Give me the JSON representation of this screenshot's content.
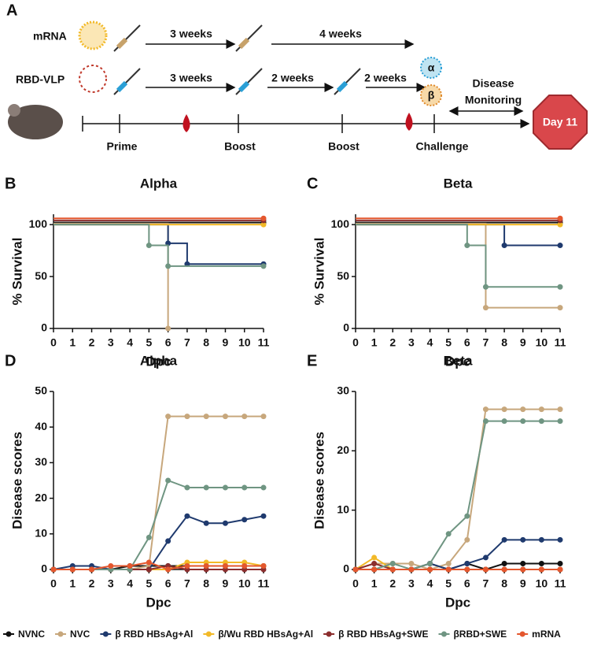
{
  "schematic": {
    "panel": "A",
    "rows": [
      "mRNA",
      "RBD-VLP"
    ],
    "intervals": [
      "3 weeks",
      "4 weeks",
      "3 weeks",
      "2 weeks",
      "2 weeks"
    ],
    "timeline": [
      "Prime",
      "Boost",
      "Boost",
      "Challenge"
    ],
    "variants": [
      "α",
      "β"
    ],
    "monitoring": [
      "Disease",
      "Monitoring"
    ],
    "endpoint": "Day 11"
  },
  "legend": [
    {
      "name": "NVNC",
      "color": "#111111"
    },
    {
      "name": "NVC",
      "color": "#c7a77c"
    },
    {
      "name": "β RBD HBsAg+Al",
      "color": "#1f3a6e"
    },
    {
      "name": "β/Wu RBD HBsAg+Al",
      "color": "#f2b928"
    },
    {
      "name": "β RBD HBsAg+SWE",
      "color": "#8b2e2e"
    },
    {
      "name": "βRBD+SWE",
      "color": "#6f9582"
    },
    {
      "name": "mRNA",
      "color": "#e4572e"
    }
  ],
  "chart_data": [
    {
      "type": "step",
      "panel": "B",
      "title": "Alpha",
      "xlabel": "Dpc",
      "ylabel": "% Survival",
      "xlim": [
        0,
        11
      ],
      "xticks": [
        0,
        1,
        2,
        3,
        4,
        5,
        6,
        7,
        8,
        9,
        10,
        11
      ],
      "ylim": [
        0,
        110
      ],
      "yticks": [
        0,
        50,
        100
      ],
      "series": [
        {
          "x": [
            0,
            11
          ],
          "values": [
            102,
            102
          ]
        },
        {
          "x": [
            0,
            6
          ],
          "values": [
            101,
            0
          ]
        },
        {
          "x": [
            0,
            6,
            7,
            11
          ],
          "values": [
            100,
            82,
            62,
            62
          ]
        },
        {
          "x": [
            0,
            11
          ],
          "values": [
            100,
            100
          ]
        },
        {
          "x": [
            0,
            11
          ],
          "values": [
            104,
            104
          ]
        },
        {
          "x": [
            0,
            5,
            6,
            11
          ],
          "values": [
            100,
            80,
            60,
            60
          ]
        },
        {
          "x": [
            0,
            11
          ],
          "values": [
            106,
            106
          ]
        }
      ]
    },
    {
      "type": "step",
      "panel": "C",
      "title": "Beta",
      "xlabel": "Dpc",
      "ylabel": "% Survival",
      "xlim": [
        0,
        11
      ],
      "xticks": [
        0,
        1,
        2,
        3,
        4,
        5,
        6,
        7,
        8,
        9,
        10,
        11
      ],
      "ylim": [
        0,
        110
      ],
      "yticks": [
        0,
        50,
        100
      ],
      "series": [
        {
          "x": [
            0,
            11
          ],
          "values": [
            102,
            102
          ]
        },
        {
          "x": [
            0,
            7,
            11
          ],
          "values": [
            101,
            20,
            20
          ]
        },
        {
          "x": [
            0,
            8,
            11
          ],
          "values": [
            100,
            80,
            80
          ]
        },
        {
          "x": [
            0,
            11
          ],
          "values": [
            100,
            100
          ]
        },
        {
          "x": [
            0,
            11
          ],
          "values": [
            104,
            104
          ]
        },
        {
          "x": [
            0,
            6,
            7,
            11
          ],
          "values": [
            100,
            80,
            40,
            40
          ]
        },
        {
          "x": [
            0,
            11
          ],
          "values": [
            106,
            106
          ]
        }
      ]
    },
    {
      "type": "line",
      "panel": "D",
      "title": "Alpha",
      "xlabel": "Dpc",
      "ylabel": "Disease scores",
      "xlim": [
        0,
        11
      ],
      "xticks": [
        0,
        1,
        2,
        3,
        4,
        5,
        6,
        7,
        8,
        9,
        10,
        11
      ],
      "ylim": [
        0,
        50
      ],
      "yticks": [
        0,
        10,
        20,
        30,
        40,
        50
      ],
      "x": [
        0,
        1,
        2,
        3,
        4,
        5,
        6,
        7,
        8,
        9,
        10,
        11
      ],
      "series": [
        {
          "values": [
            0,
            0,
            0,
            0,
            1,
            1,
            1,
            1,
            1,
            1,
            1,
            1
          ]
        },
        {
          "values": [
            0,
            0,
            0,
            0,
            0,
            1,
            43,
            43,
            43,
            43,
            43,
            43
          ]
        },
        {
          "values": [
            0,
            1,
            1,
            0,
            0,
            0,
            8,
            15,
            13,
            13,
            14,
            15
          ]
        },
        {
          "values": [
            0,
            0,
            0,
            0,
            0,
            0,
            0,
            2,
            2,
            2,
            2,
            1
          ]
        },
        {
          "values": [
            0,
            0,
            0,
            0,
            0,
            0,
            1,
            0,
            0,
            0,
            0,
            0
          ]
        },
        {
          "values": [
            0,
            0,
            0,
            0,
            0,
            9,
            25,
            23,
            23,
            23,
            23,
            23
          ]
        },
        {
          "values": [
            0,
            0,
            0,
            1,
            1,
            2,
            0,
            1,
            1,
            1,
            1,
            1
          ]
        }
      ]
    },
    {
      "type": "line",
      "panel": "E",
      "title": "Beta",
      "xlabel": "Dpc",
      "ylabel": "Disease scores",
      "xlim": [
        0,
        11
      ],
      "xticks": [
        0,
        1,
        2,
        3,
        4,
        5,
        6,
        7,
        8,
        9,
        10,
        11
      ],
      "ylim": [
        0,
        30
      ],
      "yticks": [
        0,
        10,
        20,
        30
      ],
      "x": [
        0,
        1,
        2,
        3,
        4,
        5,
        6,
        7,
        8,
        9,
        10,
        11
      ],
      "series": [
        {
          "values": [
            0,
            0,
            0,
            0,
            1,
            0,
            1,
            0,
            1,
            1,
            1,
            1
          ]
        },
        {
          "values": [
            0,
            1,
            1,
            1,
            0,
            1,
            5,
            27,
            27,
            27,
            27,
            27
          ]
        },
        {
          "values": [
            0,
            0,
            0,
            0,
            1,
            0,
            1,
            2,
            5,
            5,
            5,
            5
          ]
        },
        {
          "values": [
            0,
            2,
            0,
            0,
            0,
            0,
            0,
            0,
            0,
            0,
            0,
            0
          ]
        },
        {
          "values": [
            0,
            1,
            0,
            0,
            0,
            0,
            0,
            0,
            0,
            0,
            0,
            0
          ]
        },
        {
          "values": [
            0,
            0,
            1,
            0,
            1,
            6,
            9,
            25,
            25,
            25,
            25,
            25
          ]
        },
        {
          "values": [
            0,
            0,
            0,
            0,
            0,
            0,
            0,
            0,
            0,
            0,
            0,
            0
          ]
        }
      ]
    }
  ]
}
